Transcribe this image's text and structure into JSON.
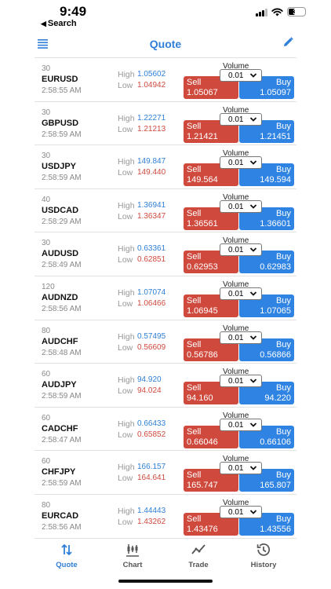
{
  "status_bar": {
    "time": "9:49",
    "back_label": "Search",
    "battery": "37"
  },
  "nav": {
    "title": "Quote"
  },
  "labels": {
    "high": "High",
    "low": "Low",
    "volume": "Volume",
    "sell": "Sell",
    "buy": "Buy"
  },
  "quotes": [
    {
      "spread": "30",
      "symbol": "EURUSD",
      "time": "2:58:55 AM",
      "high": "1.05602",
      "low": "1.04942",
      "volume": "0.01",
      "sell": "1.05067",
      "buy": "1.05097"
    },
    {
      "spread": "30",
      "symbol": "GBPUSD",
      "time": "2:58:59 AM",
      "high": "1.22271",
      "low": "1.21213",
      "volume": "0.01",
      "sell": "1.21421",
      "buy": "1.21451"
    },
    {
      "spread": "30",
      "symbol": "USDJPY",
      "time": "2:58:59 AM",
      "high": "149.847",
      "low": "149.440",
      "volume": "0.01",
      "sell": "149.564",
      "buy": "149.594"
    },
    {
      "spread": "40",
      "symbol": "USDCAD",
      "time": "2:58:29 AM",
      "high": "1.36941",
      "low": "1.36347",
      "volume": "0.01",
      "sell": "1.36561",
      "buy": "1.36601"
    },
    {
      "spread": "30",
      "symbol": "AUDUSD",
      "time": "2:58:49 AM",
      "high": "0.63361",
      "low": "0.62851",
      "volume": "0.01",
      "sell": "0.62953",
      "buy": "0.62983"
    },
    {
      "spread": "120",
      "symbol": "AUDNZD",
      "time": "2:58:56 AM",
      "high": "1.07074",
      "low": "1.06466",
      "volume": "0.01",
      "sell": "1.06945",
      "buy": "1.07065"
    },
    {
      "spread": "80",
      "symbol": "AUDCHF",
      "time": "2:58:48 AM",
      "high": "0.57495",
      "low": "0.56609",
      "volume": "0.01",
      "sell": "0.56786",
      "buy": "0.56866"
    },
    {
      "spread": "60",
      "symbol": "AUDJPY",
      "time": "2:58:59 AM",
      "high": "94.920",
      "low": "94.024",
      "volume": "0.01",
      "sell": "94.160",
      "buy": "94.220"
    },
    {
      "spread": "60",
      "symbol": "CADCHF",
      "time": "2:58:47 AM",
      "high": "0.66433",
      "low": "0.65852",
      "volume": "0.01",
      "sell": "0.66046",
      "buy": "0.66106"
    },
    {
      "spread": "60",
      "symbol": "CHFJPY",
      "time": "2:58:59 AM",
      "high": "166.157",
      "low": "164.641",
      "volume": "0.01",
      "sell": "165.747",
      "buy": "165.807"
    },
    {
      "spread": "80",
      "symbol": "EURCAD",
      "time": "2:58:56 AM",
      "high": "1.44443",
      "low": "1.43262",
      "volume": "0.01",
      "sell": "1.43476",
      "buy": "1.43556"
    }
  ],
  "tabs": [
    {
      "label": "Quote",
      "icon": "quote-arrows-icon",
      "active": true
    },
    {
      "label": "Chart",
      "icon": "chart-candles-icon",
      "active": false
    },
    {
      "label": "Trade",
      "icon": "trade-line-icon",
      "active": false
    },
    {
      "label": "History",
      "icon": "history-clock-icon",
      "active": false
    }
  ],
  "colors": {
    "accent": "#2f7fd6",
    "sell": "#d0493d",
    "buy": "#2f83e3",
    "low": "#d04a3e"
  }
}
